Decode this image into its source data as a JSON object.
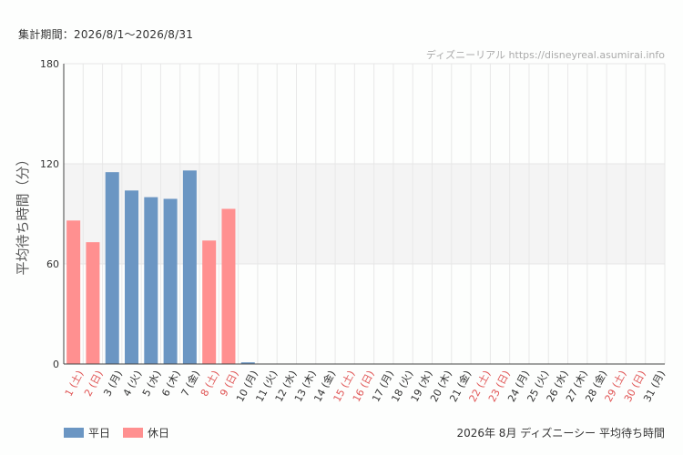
{
  "header": {
    "period": "集計期間：2026/8/1〜2026/8/31",
    "watermark": "ディズニーリアル https://disneyreal.asumirai.info"
  },
  "legend": [
    {
      "label": "平日",
      "color": "#6b96c3"
    },
    {
      "label": "休日",
      "color": "#ff9090"
    }
  ],
  "footer": {
    "title": "2026年 8月 ディズニーシー 平均待ち時間"
  },
  "chart_data": {
    "type": "bar",
    "ylabel": "平均待ち時間（分）",
    "ylim": [
      0,
      180
    ],
    "yticks": [
      0,
      60,
      120,
      180
    ],
    "shaded_band": [
      60,
      120
    ],
    "grid": true,
    "legend_position": "bottom-left",
    "colors": {
      "weekday": "#6b96c3",
      "holiday": "#ff9090",
      "holiday_label": "#e05555"
    },
    "categories": [
      {
        "label": "1 (土)",
        "holiday": true
      },
      {
        "label": "2 (日)",
        "holiday": true
      },
      {
        "label": "3 (月)",
        "holiday": false
      },
      {
        "label": "4 (火)",
        "holiday": false
      },
      {
        "label": "5 (水)",
        "holiday": false
      },
      {
        "label": "6 (木)",
        "holiday": false
      },
      {
        "label": "7 (金)",
        "holiday": false
      },
      {
        "label": "8 (土)",
        "holiday": true
      },
      {
        "label": "9 (日)",
        "holiday": true
      },
      {
        "label": "10 (月)",
        "holiday": false
      },
      {
        "label": "11 (火)",
        "holiday": false
      },
      {
        "label": "12 (水)",
        "holiday": false
      },
      {
        "label": "13 (木)",
        "holiday": false
      },
      {
        "label": "14 (金)",
        "holiday": false
      },
      {
        "label": "15 (土)",
        "holiday": true
      },
      {
        "label": "16 (日)",
        "holiday": true
      },
      {
        "label": "17 (月)",
        "holiday": false
      },
      {
        "label": "18 (火)",
        "holiday": false
      },
      {
        "label": "19 (水)",
        "holiday": false
      },
      {
        "label": "20 (木)",
        "holiday": false
      },
      {
        "label": "21 (金)",
        "holiday": false
      },
      {
        "label": "22 (土)",
        "holiday": true
      },
      {
        "label": "23 (日)",
        "holiday": true
      },
      {
        "label": "24 (月)",
        "holiday": false
      },
      {
        "label": "25 (火)",
        "holiday": false
      },
      {
        "label": "26 (水)",
        "holiday": false
      },
      {
        "label": "27 (木)",
        "holiday": false
      },
      {
        "label": "28 (金)",
        "holiday": false
      },
      {
        "label": "29 (土)",
        "holiday": true
      },
      {
        "label": "30 (日)",
        "holiday": true
      },
      {
        "label": "31 (月)",
        "holiday": false
      }
    ],
    "values": [
      86,
      73,
      115,
      104,
      100,
      99,
      116,
      74,
      93,
      1,
      0,
      0,
      0,
      0,
      0,
      0,
      0,
      0,
      0,
      0,
      0,
      0,
      0,
      0,
      0,
      0,
      0,
      0,
      0,
      0,
      0
    ]
  }
}
